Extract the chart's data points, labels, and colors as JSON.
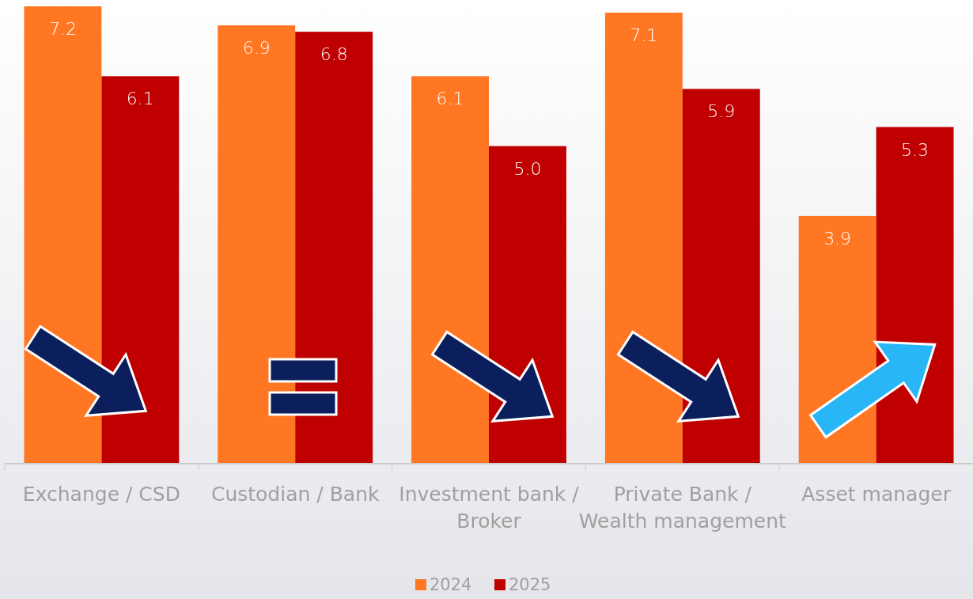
{
  "chart_data": {
    "type": "bar",
    "categories": [
      "Exchange / CSD",
      "Custodian / Bank",
      "Investment bank / Broker",
      "Private Bank / Wealth management",
      "Asset manager"
    ],
    "series": [
      {
        "name": "2024",
        "color": "#ff7722",
        "values": [
          7.2,
          6.9,
          6.1,
          7.1,
          3.9
        ],
        "value_labels": [
          "7.2",
          "6.9",
          "6.1",
          "7.1",
          "3.9"
        ]
      },
      {
        "name": "2025",
        "color": "#c00000",
        "values": [
          6.1,
          6.8,
          5.0,
          5.9,
          5.3
        ],
        "value_labels": [
          "6.1",
          "6.8",
          "5.0",
          "5.9",
          "5.3"
        ]
      }
    ],
    "legend": "bottom"
  }
}
